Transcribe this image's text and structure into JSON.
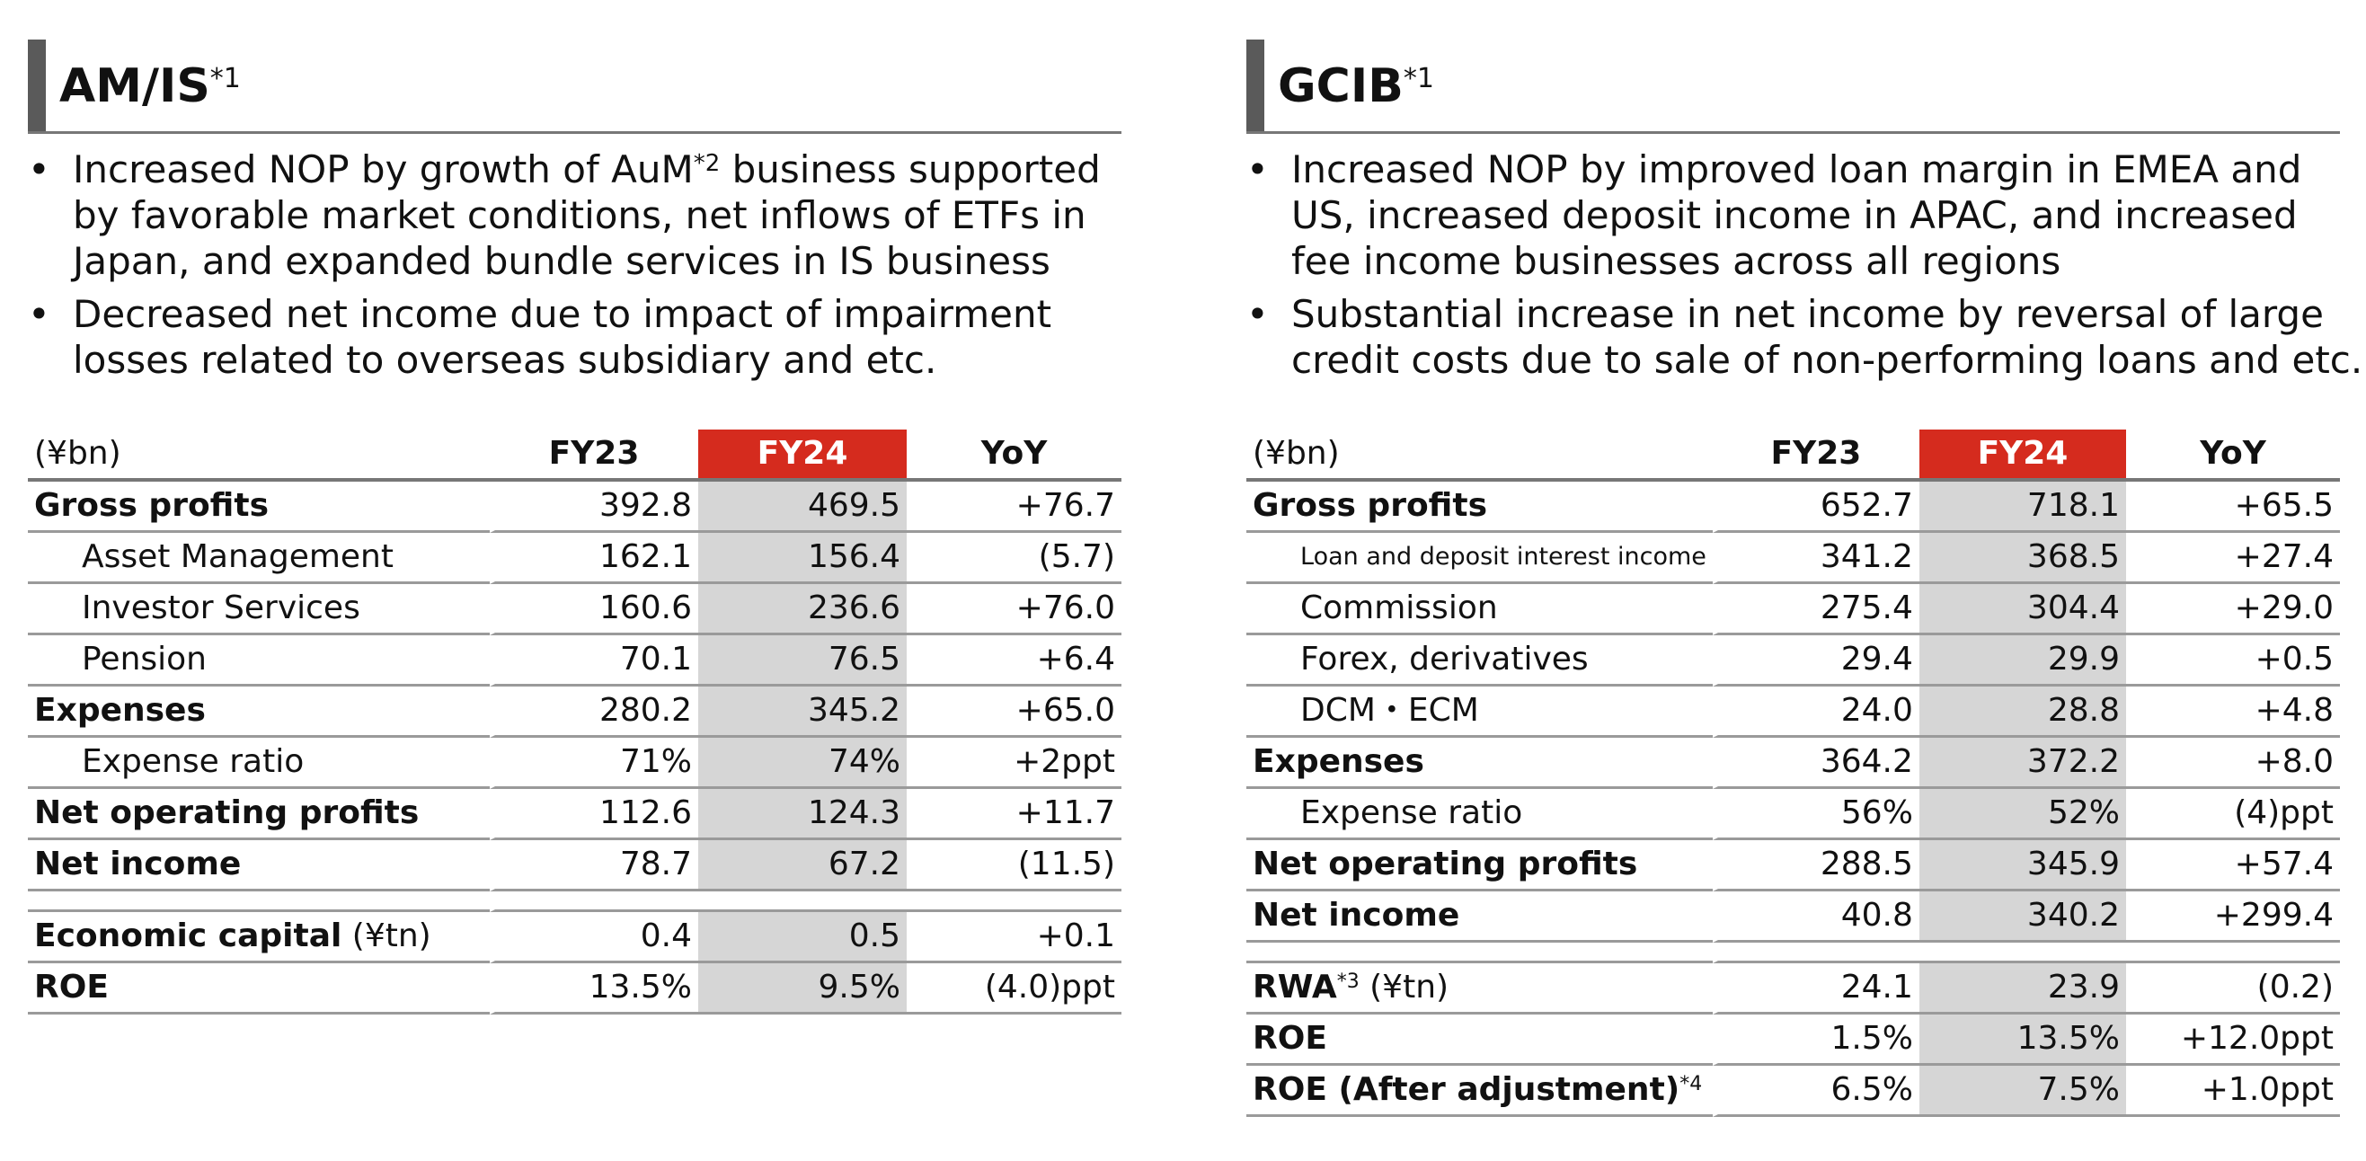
{
  "left": {
    "title": "AM/IS",
    "title_sup": "*1",
    "bullets": [
      {
        "lines": [
          "Increased NOP by growth of AuM",
          "*2",
          " business supported",
          "by favorable market conditions, net inflows of ETFs in",
          "Japan, and expanded bundle services in IS business"
        ]
      },
      {
        "lines": [
          "Decreased net income due to impact of impairment",
          "losses related to overseas subsidiary and etc."
        ]
      }
    ],
    "table": {
      "unit": "(¥bn)",
      "col_fy23": "FY23",
      "col_fy24": "FY24",
      "col_yoy": "YoY",
      "rows": [
        {
          "label": "Gross profits",
          "fy23": "392.8",
          "fy24": "469.5",
          "yoy": "+76.7"
        },
        {
          "label": "Asset Management",
          "fy23": "162.1",
          "fy24": "156.4",
          "yoy": "(5.7)"
        },
        {
          "label": "Investor Services",
          "fy23": "160.6",
          "fy24": "236.6",
          "yoy": "+76.0"
        },
        {
          "label": "Pension",
          "fy23": "70.1",
          "fy24": "76.5",
          "yoy": "+6.4"
        },
        {
          "label": "Expenses",
          "fy23": "280.2",
          "fy24": "345.2",
          "yoy": "+65.0"
        },
        {
          "label": "Expense ratio",
          "fy23": "71%",
          "fy24": "74%",
          "yoy": "+2ppt"
        },
        {
          "label": "Net operating profits",
          "fy23": "112.6",
          "fy24": "124.3",
          "yoy": "+11.7"
        },
        {
          "label": "Net income",
          "fy23": "78.7",
          "fy24": "67.2",
          "yoy": "(11.5)"
        },
        {
          "label": "Economic capital",
          "label_suffix": " (¥tn)",
          "fy23": "0.4",
          "fy24": "0.5",
          "yoy": "+0.1"
        },
        {
          "label": "ROE",
          "fy23": "13.5%",
          "fy24": "9.5%",
          "yoy": "(4.0)ppt"
        }
      ]
    }
  },
  "right": {
    "title": "GCIB",
    "title_sup": "*1",
    "bullets": [
      {
        "lines": [
          "Increased NOP by improved loan margin in EMEA and",
          "US, increased deposit income in APAC, and increased",
          "fee income businesses across all regions"
        ]
      },
      {
        "lines": [
          "Substantial increase in net income by reversal of large",
          "credit costs due to sale of non-performing loans and etc."
        ]
      }
    ],
    "table": {
      "unit": "(¥bn)",
      "col_fy23": "FY23",
      "col_fy24": "FY24",
      "col_yoy": "YoY",
      "rows": [
        {
          "label": "Gross profits",
          "fy23": "652.7",
          "fy24": "718.1",
          "yoy": "+65.5"
        },
        {
          "label": "Loan and deposit interest income",
          "fy23": "341.2",
          "fy24": "368.5",
          "yoy": "+27.4"
        },
        {
          "label": "Commission",
          "fy23": "275.4",
          "fy24": "304.4",
          "yoy": "+29.0"
        },
        {
          "label": "Forex, derivatives",
          "fy23": "29.4",
          "fy24": "29.9",
          "yoy": "+0.5"
        },
        {
          "label": "DCM・ECM",
          "fy23": "24.0",
          "fy24": "28.8",
          "yoy": "+4.8"
        },
        {
          "label": "Expenses",
          "fy23": "364.2",
          "fy24": "372.2",
          "yoy": "+8.0"
        },
        {
          "label": "Expense ratio",
          "fy23": "56%",
          "fy24": "52%",
          "yoy": "(4)ppt"
        },
        {
          "label": "Net operating profits",
          "fy23": "288.5",
          "fy24": "345.9",
          "yoy": "+57.4"
        },
        {
          "label": "Net income",
          "fy23": "40.8",
          "fy24": "340.2",
          "yoy": "+299.4"
        },
        {
          "label": "RWA",
          "label_sup": "*3",
          "label_suffix": " (¥tn)",
          "fy23": "24.1",
          "fy24": "23.9",
          "yoy": "(0.2)"
        },
        {
          "label": "ROE",
          "fy23": "1.5%",
          "fy24": "13.5%",
          "yoy": "+12.0ppt"
        },
        {
          "label": "ROE (After adjustment)",
          "label_sup": "*4",
          "fy23": "6.5%",
          "fy24": "7.5%",
          "yoy": "+1.0ppt"
        }
      ]
    }
  }
}
